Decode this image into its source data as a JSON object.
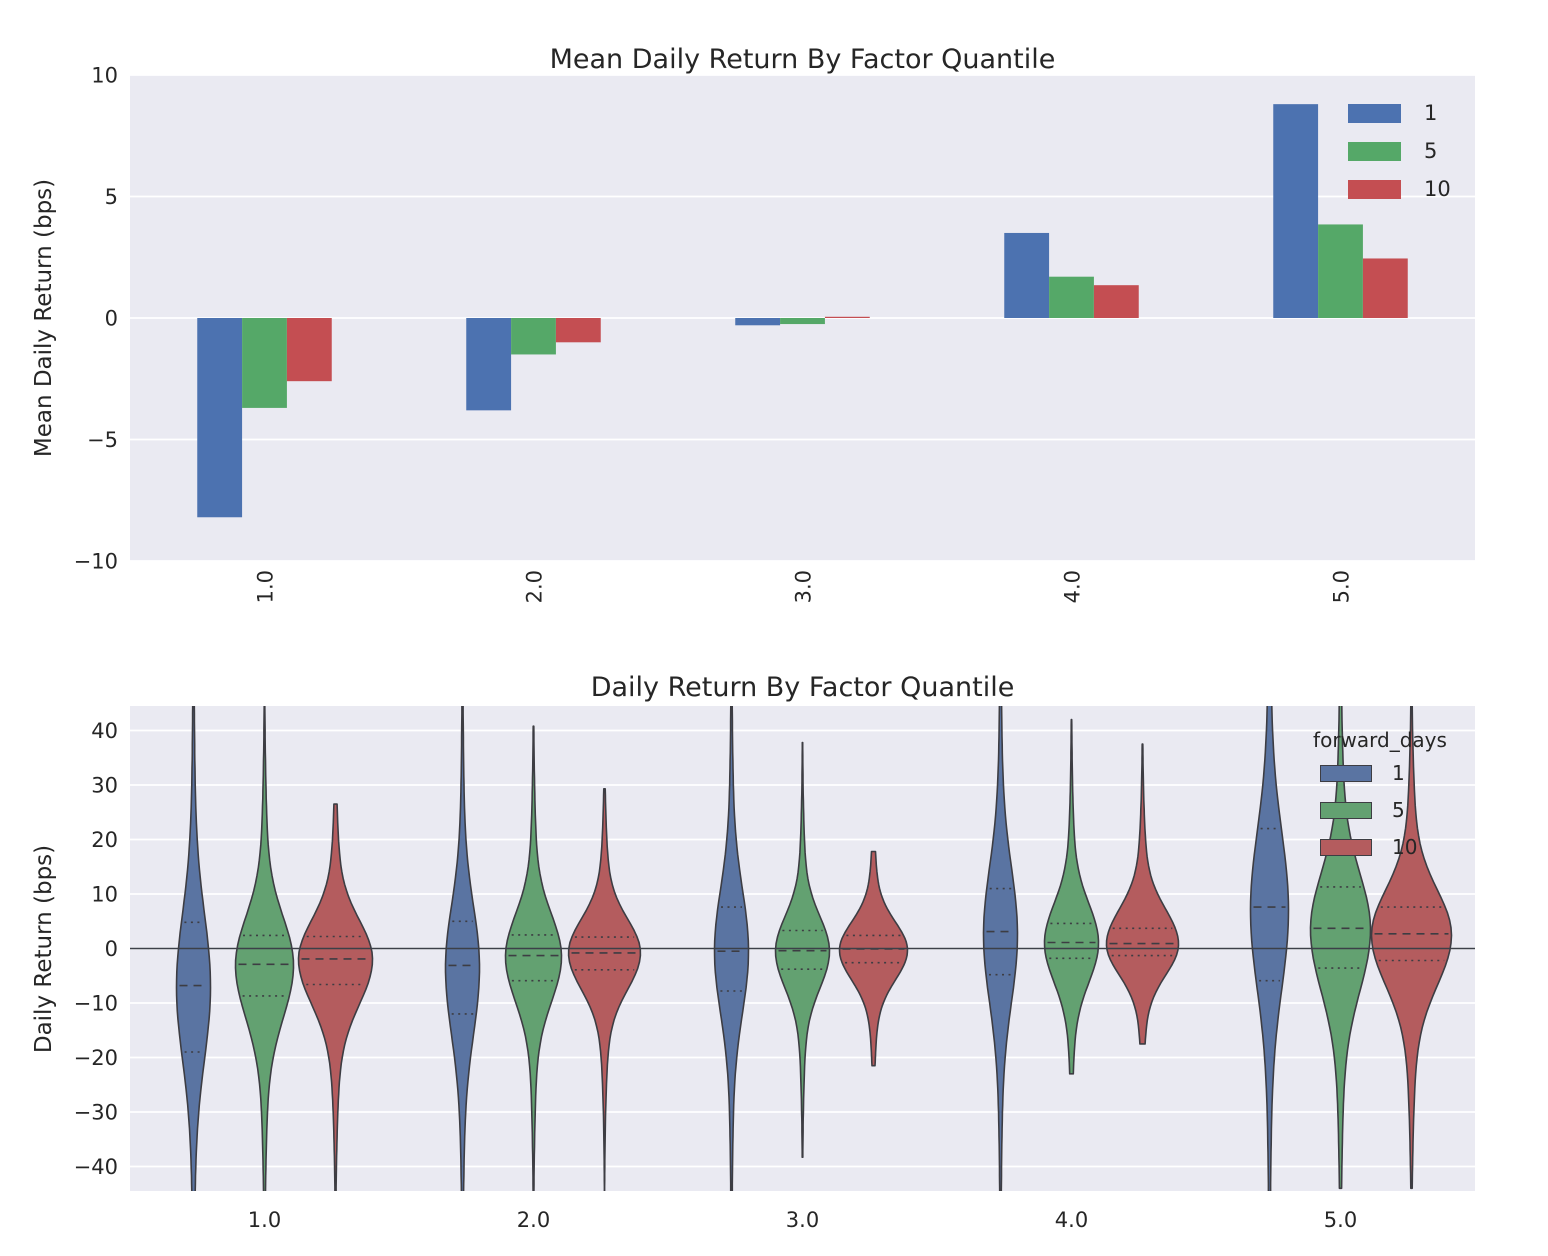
{
  "style": {
    "figure_bg": "#ffffff",
    "axes_bg": "#eaeaf2",
    "grid_color": "#ffffff",
    "text_color": "#262626",
    "zero_line_color": "#3c4048",
    "violin_edge_color": "#3d3d43"
  },
  "chart_data": [
    {
      "type": "bar",
      "title": "Mean Daily Return By Factor Quantile",
      "xlabel": "",
      "ylabel": "Mean Daily Return (bps)",
      "categories": [
        "1.0",
        "2.0",
        "3.0",
        "4.0",
        "5.0"
      ],
      "ylim": [
        -10,
        10
      ],
      "yticks": [
        10,
        5,
        0,
        -5,
        -10
      ],
      "grid": true,
      "legend_position": "upper right",
      "series": [
        {
          "name": "1",
          "color": "#4c72b0",
          "values": [
            -8.2,
            -3.8,
            -0.3,
            3.5,
            8.8
          ]
        },
        {
          "name": "5",
          "color": "#55a868",
          "values": [
            -3.7,
            -1.5,
            -0.25,
            1.7,
            3.85
          ]
        },
        {
          "name": "10",
          "color": "#c44e52",
          "values": [
            -2.6,
            -1.0,
            0.05,
            1.35,
            2.45
          ]
        }
      ]
    },
    {
      "type": "violin",
      "title": "Daily Return By Factor Quantile",
      "xlabel": "",
      "ylabel": "Daily Return (bps)",
      "categories": [
        "1.0",
        "2.0",
        "3.0",
        "4.0",
        "5.0"
      ],
      "ylim": [
        -44.5,
        44.5
      ],
      "yticks": [
        40,
        30,
        20,
        10,
        0,
        -10,
        -20,
        -30,
        -40
      ],
      "grid": true,
      "zero_line": 0,
      "legend_title": "forward_days",
      "legend_position": "upper right",
      "series": [
        {
          "name": "1",
          "color": "#5a74a2",
          "violins": [
            {
              "min": -46,
              "max": 46,
              "peak": -7,
              "sigma_up": 13,
              "sigma_down": 13,
              "halfwidth": 17,
              "q1": -19,
              "median": -6.8,
              "q3": 4.8
            },
            {
              "min": -46,
              "max": 46,
              "peak": -3.5,
              "sigma_up": 11,
              "sigma_down": 12,
              "halfwidth": 17,
              "q1": -12,
              "median": -3.1,
              "q3": 5.0
            },
            {
              "min": -46,
              "max": 46,
              "peak": -0.5,
              "sigma_up": 11,
              "sigma_down": 11,
              "halfwidth": 17,
              "q1": -7.8,
              "median": -0.5,
              "q3": 7.6
            },
            {
              "min": -46,
              "max": 46,
              "peak": 2.5,
              "sigma_up": 12,
              "sigma_down": 12,
              "halfwidth": 17,
              "q1": -4.8,
              "median": 3.1,
              "q3": 11.0
            },
            {
              "min": -46,
              "max": 46,
              "peak": 7,
              "sigma_up": 14,
              "sigma_down": 14,
              "halfwidth": 19,
              "q1": -5.9,
              "median": 7.6,
              "q3": 22.0
            }
          ]
        },
        {
          "name": "5",
          "color": "#63a171",
          "violins": [
            {
              "min": -46,
              "max": 44.5,
              "peak": -3,
              "sigma_up": 8.5,
              "sigma_down": 9.5,
              "halfwidth": 29,
              "q1": -8.7,
              "median": -2.9,
              "q3": 2.4
            },
            {
              "min": -46,
              "max": 40.8,
              "peak": -1.5,
              "sigma_up": 7.5,
              "sigma_down": 8,
              "halfwidth": 28,
              "q1": -5.9,
              "median": -1.3,
              "q3": 2.5
            },
            {
              "min": -38.3,
              "max": 37.8,
              "peak": -0.5,
              "sigma_up": 6.2,
              "sigma_down": 6.6,
              "halfwidth": 27,
              "q1": -3.8,
              "median": -0.4,
              "q3": 3.3
            },
            {
              "min": -23,
              "max": 42,
              "peak": 1,
              "sigma_up": 7,
              "sigma_down": 7,
              "halfwidth": 27,
              "q1": -1.8,
              "median": 1.1,
              "q3": 4.6
            },
            {
              "min": -44,
              "max": 46,
              "peak": 3.5,
              "sigma_up": 10,
              "sigma_down": 11,
              "halfwidth": 30,
              "q1": -3.6,
              "median": 3.7,
              "q3": 11.3
            }
          ]
        },
        {
          "name": "10",
          "color": "#b45c5e",
          "violins": [
            {
              "min": -46,
              "max": 26.5,
              "peak": -2,
              "sigma_up": 7,
              "sigma_down": 8,
              "halfwidth": 37,
              "q1": -6.6,
              "median": -1.9,
              "q3": 2.2
            },
            {
              "min": -46,
              "max": 29.3,
              "peak": -0.8,
              "sigma_up": 6,
              "sigma_down": 6.5,
              "halfwidth": 36,
              "q1": -3.9,
              "median": -0.8,
              "q3": 2.1
            },
            {
              "min": -21.5,
              "max": 17.8,
              "peak": -0.3,
              "sigma_up": 5,
              "sigma_down": 5.3,
              "halfwidth": 34,
              "q1": -2.6,
              "median": -0.1,
              "q3": 2.4
            },
            {
              "min": -17.5,
              "max": 37.5,
              "peak": 0.8,
              "sigma_up": 6.2,
              "sigma_down": 5.5,
              "halfwidth": 36,
              "q1": -1.3,
              "median": 0.9,
              "q3": 3.7
            },
            {
              "min": -44,
              "max": 46,
              "peak": 2.5,
              "sigma_up": 8,
              "sigma_down": 9,
              "halfwidth": 40,
              "q1": -2.2,
              "median": 2.7,
              "q3": 7.6
            }
          ]
        }
      ]
    }
  ]
}
